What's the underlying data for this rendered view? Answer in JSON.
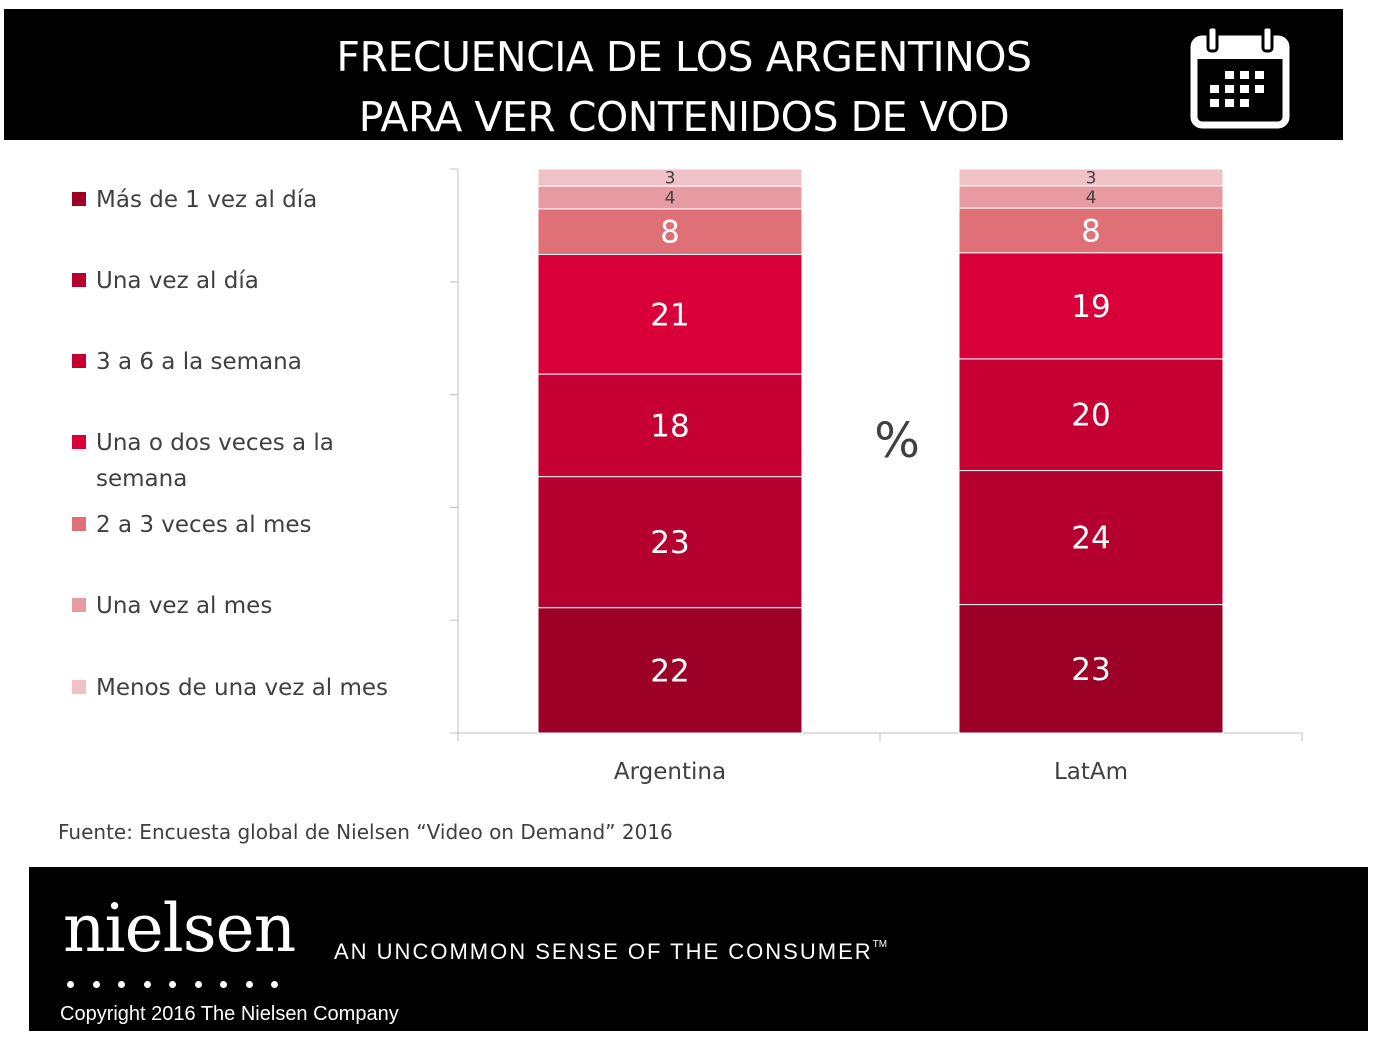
{
  "header": {
    "title_line1": "FRECUENCIA DE LOS ARGENTINOS",
    "title_line2": "PARA VER CONTENIDOS DE  VOD"
  },
  "icons": {
    "header_icon": "calendar-icon"
  },
  "chart_data": {
    "type": "bar",
    "stacked": true,
    "normalized_percent": true,
    "categories": [
      "Argentina",
      "LatAm"
    ],
    "series": [
      {
        "name": "Más de 1 vez al día",
        "values": [
          22,
          23
        ],
        "color": "#9c0027"
      },
      {
        "name": "Una vez al día",
        "values": [
          23,
          24
        ],
        "color": "#b5002f"
      },
      {
        "name": "3 a 6 a la semana",
        "values": [
          18,
          20
        ],
        "color": "#c70033"
      },
      {
        "name": "Una o dos veces a la semana",
        "values": [
          21,
          19
        ],
        "color": "#d9003a"
      },
      {
        "name": "2 a 3 veces al mes",
        "values": [
          8,
          8
        ],
        "color": "#e07078"
      },
      {
        "name": "Una vez al mes",
        "values": [
          4,
          4
        ],
        "color": "#e89aa2"
      },
      {
        "name": "Menos de una vez al mes",
        "values": [
          3,
          3
        ],
        "color": "#f0c2c6"
      }
    ],
    "unit_label": "%",
    "legend": "left",
    "grid": false
  },
  "source": "Fuente: Encuesta global de Nielsen “Video on Demand” 2016",
  "footer": {
    "logo_text": "nielsen",
    "tagline": "AN UNCOMMON SENSE OF THE CONSUMER",
    "tagline_mark": "TM",
    "copyright": "Copyright 2016 The Nielsen Company"
  }
}
